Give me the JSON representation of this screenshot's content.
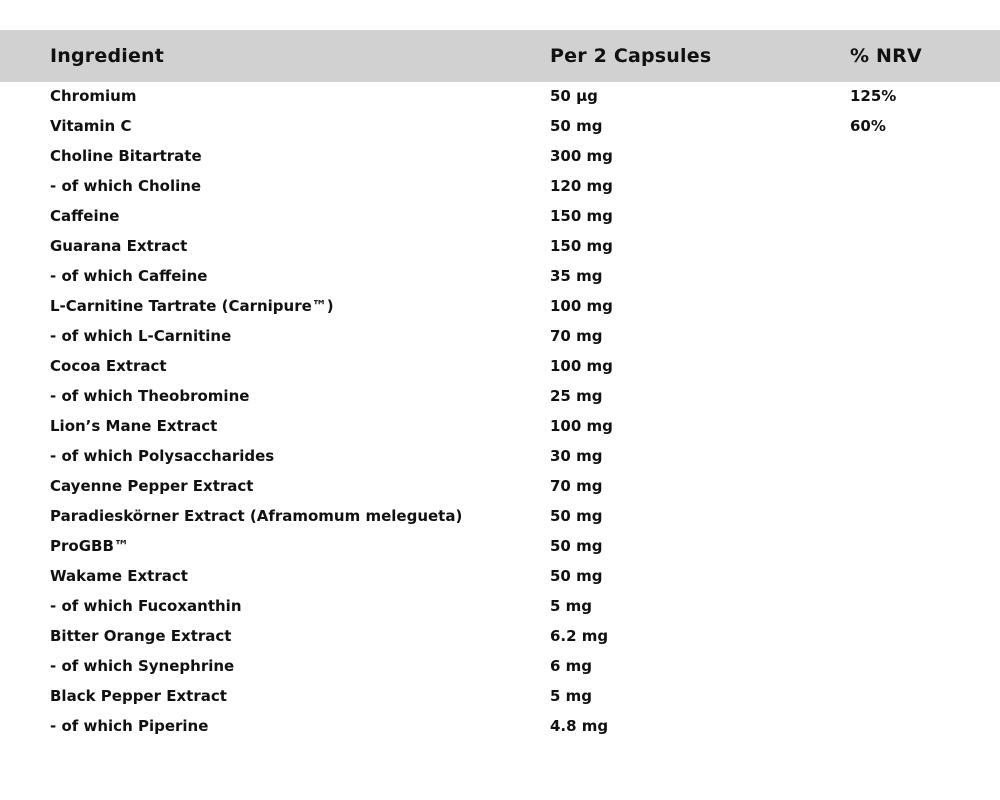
{
  "colors": {
    "background": "#ffffff",
    "header_bg": "#d1d1d1",
    "text": "#111111"
  },
  "table": {
    "headers": {
      "ingredient": "Ingredient",
      "amount": "Per 2 Capsules",
      "nrv": "% NRV"
    },
    "rows": [
      {
        "ingredient": "Chromium",
        "amount": "50 µg",
        "nrv": "125%"
      },
      {
        "ingredient": "Vitamin C",
        "amount": "50 mg",
        "nrv": "60%"
      },
      {
        "ingredient": "Choline Bitartrate",
        "amount": "300 mg",
        "nrv": ""
      },
      {
        "ingredient": "- of which Choline",
        "amount": "120 mg",
        "nrv": ""
      },
      {
        "ingredient": "Caffeine",
        "amount": "150 mg",
        "nrv": ""
      },
      {
        "ingredient": "Guarana Extract",
        "amount": "150 mg",
        "nrv": ""
      },
      {
        "ingredient": "- of which Caffeine",
        "amount": "35 mg",
        "nrv": ""
      },
      {
        "ingredient": "L-Carnitine Tartrate (Carnipure™)",
        "amount": "100 mg",
        "nrv": ""
      },
      {
        "ingredient": "- of which L-Carnitine",
        "amount": "70 mg",
        "nrv": ""
      },
      {
        "ingredient": "Cocoa Extract",
        "amount": "100 mg",
        "nrv": ""
      },
      {
        "ingredient": "- of which Theobromine",
        "amount": "25 mg",
        "nrv": ""
      },
      {
        "ingredient": "Lion’s Mane Extract",
        "amount": "100 mg",
        "nrv": ""
      },
      {
        "ingredient": "- of which Polysaccharides",
        "amount": "30 mg",
        "nrv": ""
      },
      {
        "ingredient": "Cayenne Pepper Extract",
        "amount": "70 mg",
        "nrv": ""
      },
      {
        "ingredient": "Paradieskörner Extract (Aframomum melegueta)",
        "amount": "50 mg",
        "nrv": ""
      },
      {
        "ingredient": "ProGBB™",
        "amount": "50 mg",
        "nrv": ""
      },
      {
        "ingredient": "Wakame Extract",
        "amount": "50 mg",
        "nrv": ""
      },
      {
        "ingredient": "- of which Fucoxanthin",
        "amount": "5 mg",
        "nrv": ""
      },
      {
        "ingredient": "Bitter Orange Extract",
        "amount": "6.2 mg",
        "nrv": ""
      },
      {
        "ingredient": "- of which Synephrine",
        "amount": "6 mg",
        "nrv": ""
      },
      {
        "ingredient": "Black Pepper Extract",
        "amount": "5 mg",
        "nrv": ""
      },
      {
        "ingredient": "- of which Piperine",
        "amount": "4.8 mg",
        "nrv": ""
      }
    ]
  }
}
